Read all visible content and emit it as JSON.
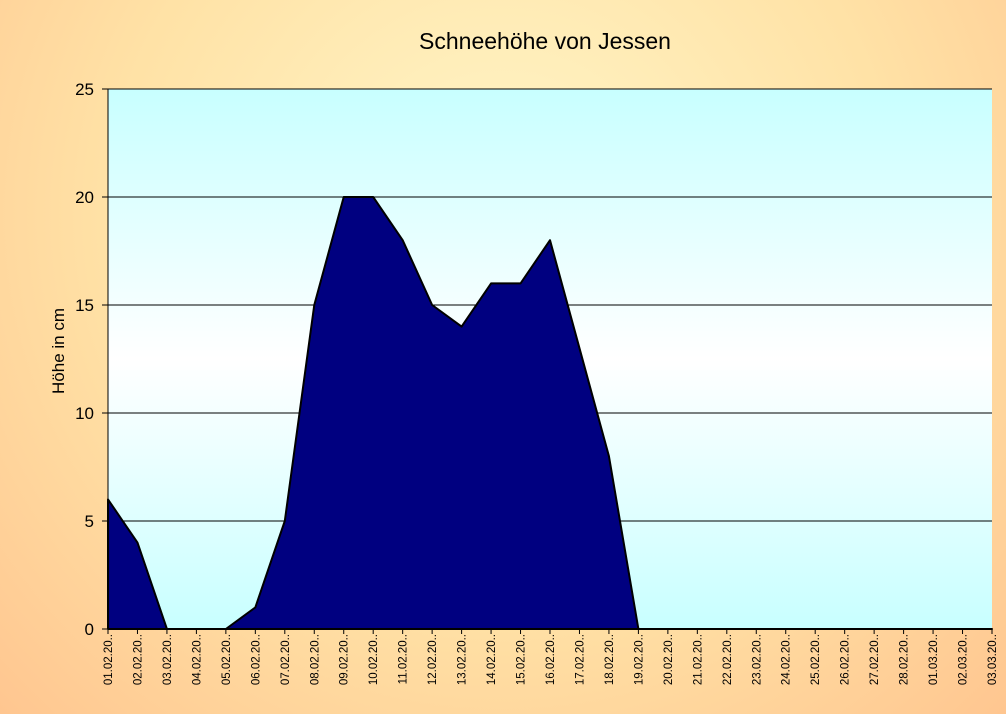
{
  "chart_data": {
    "type": "area",
    "title": "Schneehöhe von Jessen",
    "xlabel": "",
    "ylabel": "Höhe in cm",
    "ylim": [
      0,
      25
    ],
    "yticks": [
      0,
      5,
      10,
      15,
      20,
      25
    ],
    "grid": true,
    "legend": "none",
    "categories": [
      "01.02.20..",
      "02.02.20..",
      "03.02.20..",
      "04.02.20..",
      "05.02.20..",
      "06.02.20..",
      "07.02.20..",
      "08.02.20..",
      "09.02.20..",
      "10.02.20..",
      "11.02.20..",
      "12.02.20..",
      "13.02.20..",
      "14.02.20..",
      "15.02.20..",
      "16.02.20..",
      "17.02.20..",
      "18.02.20..",
      "19.02.20..",
      "20.02.20..",
      "21.02.20..",
      "22.02.20..",
      "23.02.20..",
      "24.02.20..",
      "25.02.20..",
      "26.02.20..",
      "27.02.20..",
      "28.02.20..",
      "01.03.20..",
      "02.03.20..",
      "03.03.20.."
    ],
    "series": [
      {
        "values": [
          6,
          4,
          0,
          0,
          0,
          1,
          5,
          15,
          20,
          20,
          18,
          15,
          14,
          16,
          16,
          18,
          13,
          8,
          0,
          0,
          0,
          0,
          0,
          0,
          0,
          0,
          0,
          0,
          0,
          0,
          0
        ]
      }
    ],
    "colors": {
      "area_fill": "#000080",
      "area_stroke": "#000000",
      "plot_bg_top": "#c8ffff",
      "plot_bg_mid": "#ffffff",
      "grid": "#000000"
    }
  }
}
